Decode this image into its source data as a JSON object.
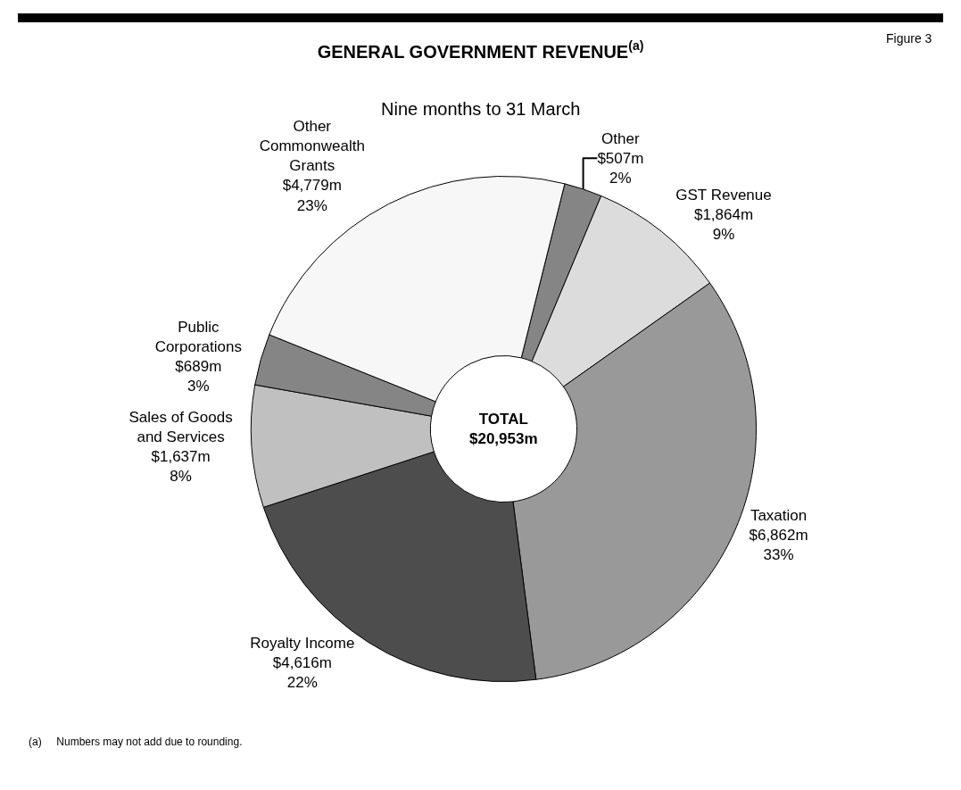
{
  "chart_data": {
    "type": "donut",
    "title": "GENERAL GOVERNMENT REVENUE$^{(a)}$",
    "subtitle": "Nine months to 31 March",
    "categories": [
      "Other",
      "GST Revenue",
      "Taxation",
      "Royalty Income",
      "Sales of Goods and Services",
      "Public Corporations",
      "Other Commonwealth Grants"
    ],
    "values": [
      507,
      1864,
      6862,
      4616,
      1637,
      689,
      4779
    ],
    "value_labels": [
      "$507m",
      "$1,864m",
      "$6,862m",
      "$4,616m",
      "$1,637m",
      "$689m",
      "$4,779m"
    ],
    "colors": [
      "#858585",
      "#dcdcdc",
      "#999999",
      "#4d4d4d",
      "#c0c0c0",
      "#858585",
      "#f7f7f7"
    ],
    "annotations": [
      "TOTAL\n$20,953m",
      "Figure 3",
      "(a)     Numbers may not add due to rounding.",
      {
        "text": "2%",
        "x": "Other"
      },
      {
        "text": "9%",
        "x": "GST Revenue"
      },
      {
        "text": "33%",
        "x": "Taxation"
      },
      {
        "text": "22%",
        "x": "Royalty Income"
      },
      {
        "text": "8%",
        "x": "Sales of Goods and Services"
      },
      {
        "text": "3%",
        "x": "Public Corporations"
      },
      {
        "text": "23%",
        "x": "Other Commonwealth Grants"
      }
    ],
    "legend": false
  }
}
